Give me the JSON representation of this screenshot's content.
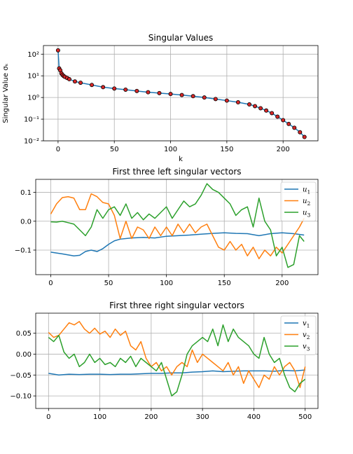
{
  "chart_data": [
    {
      "type": "line",
      "title": "Singular Values",
      "xlabel": "k",
      "ylabel": "Singular Value σₖ",
      "yscale": "log",
      "xlim": [
        -13,
        231
      ],
      "ylim": [
        0.01,
        250
      ],
      "xticks": [
        0,
        50,
        100,
        150,
        200
      ],
      "yticks": [
        0.01,
        0.1,
        1,
        10,
        100
      ],
      "yticklabels": [
        "10⁻²",
        "10⁻¹",
        "10⁰",
        "10¹",
        "10²"
      ],
      "grid": true,
      "colors": {
        "line": "#1f77b4",
        "marker": "#d62728"
      },
      "series": [
        {
          "markers": true,
          "x": [
            0,
            1,
            2,
            3,
            4,
            5,
            6,
            8,
            10,
            15,
            20,
            30,
            40,
            50,
            60,
            70,
            80,
            90,
            100,
            110,
            120,
            130,
            140,
            150,
            160,
            170,
            175,
            180,
            185,
            190,
            195,
            200,
            205,
            210,
            215,
            219
          ],
          "y": [
            150,
            22,
            18,
            13,
            11,
            9.8,
            9,
            8,
            7,
            5.5,
            4.8,
            3.8,
            3.0,
            2.6,
            2.3,
            2.0,
            1.75,
            1.6,
            1.45,
            1.3,
            1.15,
            1.0,
            0.85,
            0.72,
            0.6,
            0.48,
            0.4,
            0.32,
            0.25,
            0.19,
            0.13,
            0.09,
            0.06,
            0.04,
            0.025,
            0.015
          ]
        }
      ]
    },
    {
      "type": "line",
      "title": "First three left singular vectors",
      "xlim": [
        -13,
        231
      ],
      "ylim": [
        -0.185,
        0.145
      ],
      "xticks": [
        0,
        50,
        100,
        150,
        200
      ],
      "yticks": [
        -0.1,
        0.0,
        0.1
      ],
      "yticklabels": [
        "−0.1",
        "0.0",
        "0.1"
      ],
      "grid": true,
      "legend": "top-right",
      "series": [
        {
          "name": "u₁",
          "label_base": "u",
          "label_sub": "1",
          "color": "#1f77b4",
          "x": [
            0,
            10,
            20,
            25,
            30,
            35,
            40,
            45,
            50,
            55,
            60,
            70,
            80,
            90,
            100,
            110,
            120,
            130,
            140,
            150,
            160,
            170,
            180,
            190,
            200,
            210,
            219
          ],
          "y": [
            -0.107,
            -0.113,
            -0.12,
            -0.118,
            -0.105,
            -0.1,
            -0.105,
            -0.095,
            -0.08,
            -0.068,
            -0.062,
            -0.058,
            -0.056,
            -0.058,
            -0.052,
            -0.05,
            -0.048,
            -0.045,
            -0.042,
            -0.04,
            -0.042,
            -0.043,
            -0.05,
            -0.043,
            -0.04,
            -0.043,
            -0.048
          ]
        },
        {
          "name": "u₂",
          "label_base": "u",
          "label_sub": "2",
          "color": "#ff7f0e",
          "x": [
            0,
            5,
            10,
            15,
            20,
            25,
            30,
            35,
            40,
            45,
            50,
            55,
            60,
            65,
            70,
            75,
            80,
            85,
            90,
            95,
            100,
            105,
            110,
            115,
            120,
            125,
            130,
            135,
            140,
            145,
            150,
            155,
            160,
            165,
            170,
            175,
            180,
            185,
            190,
            195,
            200,
            205,
            210,
            215,
            219
          ],
          "y": [
            0.025,
            0.06,
            0.082,
            0.085,
            0.08,
            0.04,
            0.04,
            0.095,
            0.085,
            0.065,
            0.06,
            0.02,
            -0.06,
            0.0,
            -0.06,
            -0.02,
            -0.03,
            -0.06,
            -0.02,
            -0.05,
            -0.02,
            -0.05,
            -0.01,
            -0.04,
            -0.01,
            -0.04,
            -0.02,
            -0.01,
            -0.05,
            -0.09,
            -0.1,
            -0.07,
            -0.1,
            -0.08,
            -0.12,
            -0.09,
            -0.13,
            -0.1,
            -0.12,
            -0.09,
            -0.11,
            -0.08,
            -0.05,
            -0.02,
            0.01
          ]
        },
        {
          "name": "u₃",
          "label_base": "u",
          "label_sub": "3",
          "color": "#2ca02c",
          "x": [
            0,
            5,
            10,
            15,
            20,
            25,
            30,
            35,
            40,
            45,
            50,
            55,
            60,
            65,
            70,
            75,
            80,
            85,
            90,
            95,
            100,
            105,
            110,
            115,
            120,
            125,
            130,
            135,
            140,
            145,
            150,
            155,
            160,
            165,
            170,
            175,
            180,
            185,
            190,
            195,
            200,
            205,
            210,
            215,
            219
          ],
          "y": [
            -0.002,
            -0.003,
            0.0,
            -0.005,
            -0.01,
            -0.03,
            -0.05,
            -0.02,
            0.04,
            0.01,
            0.04,
            0.05,
            0.02,
            0.06,
            0.01,
            0.03,
            0.005,
            0.025,
            0.01,
            0.03,
            0.05,
            0.01,
            0.04,
            0.07,
            0.05,
            0.06,
            0.09,
            0.13,
            0.11,
            0.1,
            0.08,
            0.06,
            0.02,
            0.04,
            0.05,
            -0.02,
            0.08,
            0.0,
            -0.03,
            -0.12,
            -0.09,
            -0.16,
            -0.15,
            -0.05,
            -0.07
          ]
        }
      ]
    },
    {
      "type": "line",
      "title": "First three right singular vectors",
      "xlim": [
        -25,
        525
      ],
      "ylim": [
        -0.13,
        0.098
      ],
      "xticks": [
        0,
        100,
        200,
        300,
        400,
        500
      ],
      "yticks": [
        -0.1,
        -0.05,
        0.0,
        0.05
      ],
      "yticklabels": [
        "−0.10",
        "−0.05",
        "0.00",
        "0.05"
      ],
      "grid": true,
      "legend": "top-right",
      "series": [
        {
          "name": "v₁",
          "label_base": "v",
          "label_sub": "1",
          "color": "#1f77b4",
          "x": [
            0,
            20,
            40,
            60,
            80,
            100,
            120,
            140,
            160,
            180,
            200,
            220,
            240,
            260,
            280,
            300,
            320,
            340,
            360,
            380,
            400,
            420,
            440,
            460,
            480,
            500
          ],
          "y": [
            -0.046,
            -0.05,
            -0.048,
            -0.049,
            -0.048,
            -0.048,
            -0.049,
            -0.048,
            -0.048,
            -0.047,
            -0.046,
            -0.046,
            -0.045,
            -0.045,
            -0.043,
            -0.042,
            -0.04,
            -0.042,
            -0.041,
            -0.04,
            -0.04,
            -0.04,
            -0.041,
            -0.039,
            -0.04,
            -0.038
          ]
        },
        {
          "name": "v₂",
          "label_base": "v",
          "label_sub": "2",
          "color": "#ff7f0e",
          "x": [
            0,
            10,
            20,
            30,
            40,
            50,
            60,
            70,
            80,
            90,
            100,
            110,
            120,
            130,
            140,
            150,
            160,
            170,
            180,
            190,
            200,
            210,
            220,
            230,
            240,
            250,
            260,
            270,
            280,
            290,
            300,
            310,
            320,
            330,
            340,
            350,
            360,
            370,
            380,
            390,
            400,
            410,
            420,
            430,
            440,
            450,
            460,
            470,
            480,
            490,
            500
          ],
          "y": [
            0.052,
            0.04,
            0.045,
            0.06,
            0.075,
            0.07,
            0.078,
            0.06,
            0.05,
            0.062,
            0.048,
            0.055,
            0.04,
            0.06,
            0.045,
            0.055,
            0.02,
            0.01,
            0.03,
            -0.01,
            -0.03,
            -0.02,
            -0.04,
            -0.03,
            -0.05,
            -0.03,
            -0.02,
            -0.03,
            0.01,
            -0.02,
            0.0,
            -0.01,
            -0.02,
            -0.03,
            -0.04,
            -0.02,
            -0.05,
            -0.03,
            -0.07,
            -0.04,
            -0.06,
            -0.08,
            -0.05,
            -0.06,
            -0.03,
            -0.05,
            -0.03,
            -0.02,
            -0.04,
            -0.08,
            -0.03
          ]
        },
        {
          "name": "v₃",
          "label_base": "v",
          "label_sub": "3",
          "color": "#2ca02c",
          "x": [
            0,
            10,
            20,
            30,
            40,
            50,
            60,
            70,
            80,
            90,
            100,
            110,
            120,
            130,
            140,
            150,
            160,
            170,
            180,
            190,
            200,
            210,
            220,
            230,
            240,
            250,
            260,
            270,
            280,
            290,
            300,
            310,
            320,
            330,
            340,
            350,
            360,
            370,
            380,
            390,
            400,
            410,
            420,
            430,
            440,
            450,
            460,
            470,
            480,
            490,
            500
          ],
          "y": [
            0.04,
            0.03,
            0.045,
            0.005,
            -0.01,
            0.0,
            -0.03,
            -0.02,
            0.0,
            -0.02,
            -0.01,
            -0.025,
            -0.02,
            -0.03,
            -0.01,
            -0.02,
            -0.005,
            -0.03,
            -0.01,
            -0.02,
            -0.03,
            -0.04,
            -0.02,
            -0.06,
            -0.1,
            -0.09,
            -0.05,
            0.0,
            0.02,
            0.03,
            0.04,
            0.03,
            0.06,
            0.02,
            0.07,
            0.03,
            0.06,
            0.04,
            0.03,
            0.02,
            0.0,
            -0.01,
            0.04,
            0.0,
            -0.02,
            -0.01,
            -0.05,
            -0.08,
            -0.09,
            -0.07,
            -0.06
          ]
        }
      ]
    }
  ]
}
